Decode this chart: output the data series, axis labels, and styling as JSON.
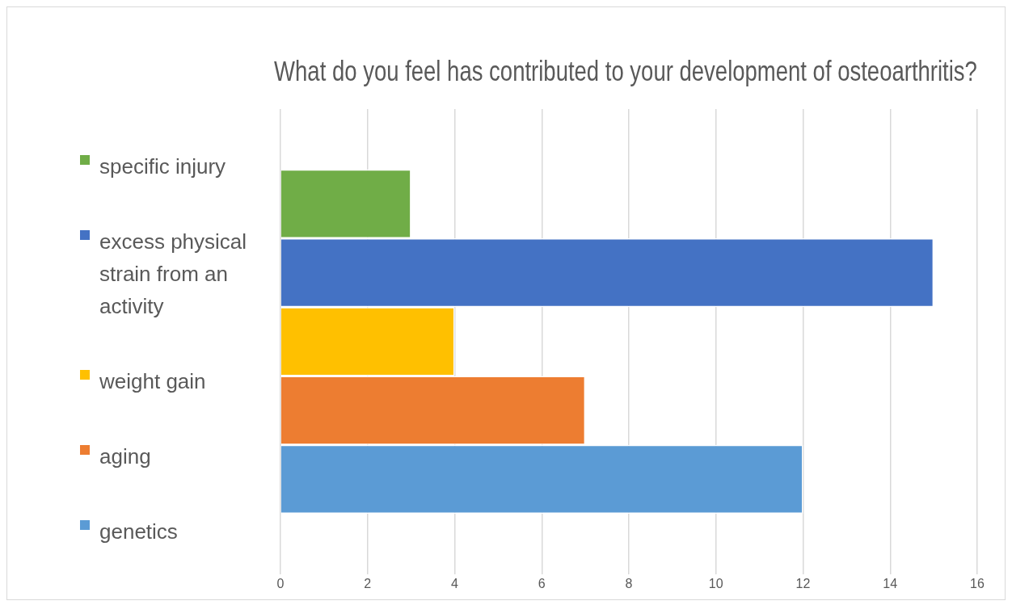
{
  "chart_data": {
    "type": "bar",
    "orientation": "horizontal",
    "title": "What do you feel has contributed to your development of osteoarthritis?",
    "categories": [
      null
    ],
    "series": [
      {
        "name": "specific injury",
        "color": "#70ad47",
        "values": [
          3
        ]
      },
      {
        "name": "excess physical strain from an activity",
        "color": "#4472c4",
        "values": [
          15
        ]
      },
      {
        "name": "weight gain",
        "color": "#ffc000",
        "values": [
          4
        ]
      },
      {
        "name": "aging",
        "color": "#ed7d31",
        "values": [
          7
        ]
      },
      {
        "name": "genetics",
        "color": "#5b9bd5",
        "values": [
          12
        ]
      }
    ],
    "xlim": [
      0,
      16
    ],
    "xticks": [
      0,
      2,
      4,
      6,
      8,
      10,
      12,
      14,
      16
    ],
    "grid": "x",
    "legend": "left",
    "tick_labels": "x"
  }
}
